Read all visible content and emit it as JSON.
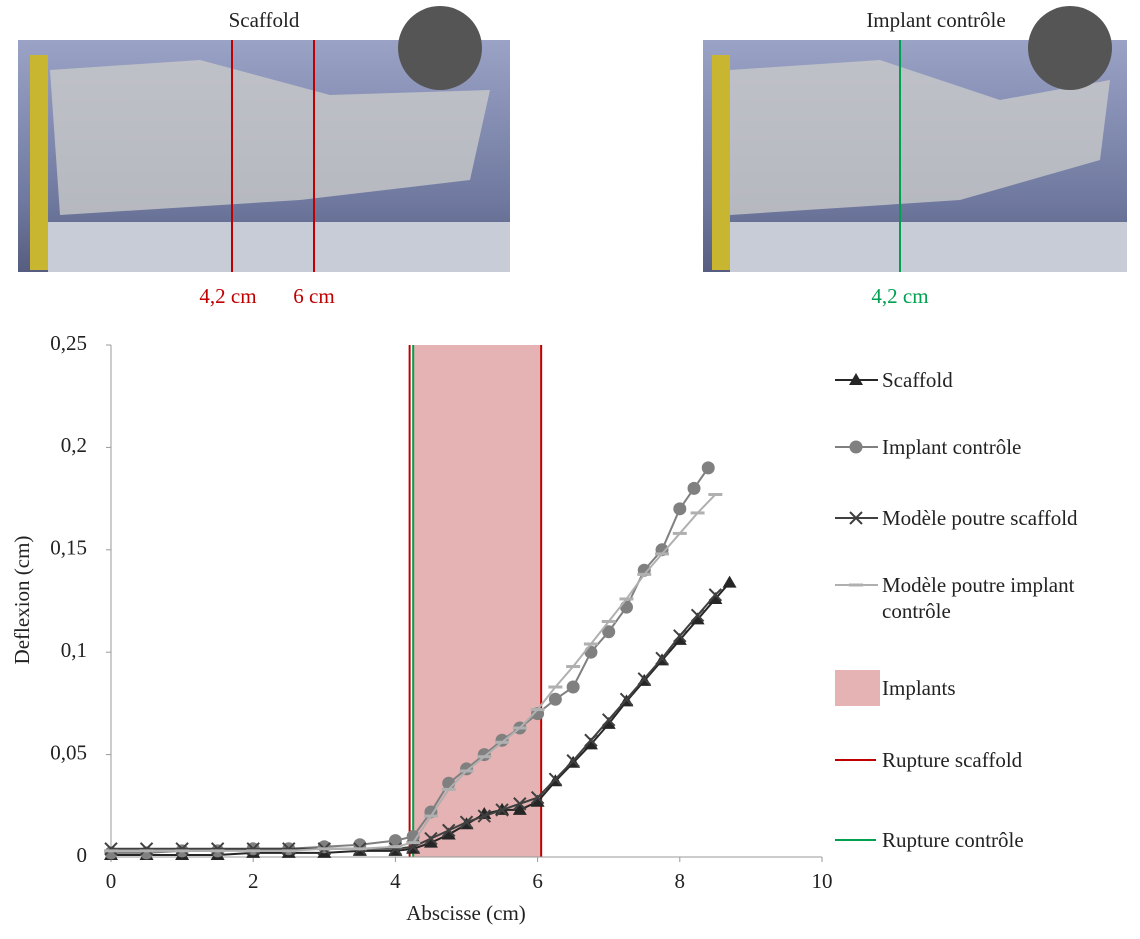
{
  "photos": [
    {
      "title": "Scaffold",
      "marks": [
        "4,2 cm",
        "6 cm"
      ]
    },
    {
      "title": "Implant contrôle",
      "marks": [
        "4,2 cm"
      ]
    }
  ],
  "chart_data": {
    "type": "line",
    "x_label": "Abscisse (cm)",
    "y_label": "Deflexion (cm)",
    "xlim": [
      0,
      10
    ],
    "xticks": [
      0,
      2,
      4,
      6,
      8,
      10
    ],
    "ylim": [
      0,
      0.25
    ],
    "yticks": [
      0,
      {
        "value": 0.05,
        "label": "0,05"
      },
      {
        "value": 0.1,
        "label": "0,1"
      },
      {
        "value": 0.15,
        "label": "0,15"
      },
      {
        "value": 0.2,
        "label": "0,2"
      },
      {
        "value": 0.25,
        "label": "0,25"
      }
    ],
    "legend": "right",
    "series": [
      {
        "name": "Scaffold",
        "color": "#262626",
        "marker": "triangle",
        "x": [
          0,
          0.5,
          1,
          1.5,
          2,
          2.5,
          3,
          3.5,
          4,
          4.25,
          4.5,
          4.75,
          5,
          5.25,
          5.5,
          5.75,
          6,
          6.25,
          6.5,
          6.75,
          7,
          7.25,
          7.5,
          7.75,
          8,
          8.25,
          8.5,
          8.7
        ],
        "values": [
          0.001,
          0.001,
          0.001,
          0.001,
          0.002,
          0.002,
          0.002,
          0.003,
          0.003,
          0.004,
          0.007,
          0.011,
          0.016,
          0.021,
          0.023,
          0.023,
          0.027,
          0.037,
          0.046,
          0.055,
          0.065,
          0.076,
          0.086,
          0.096,
          0.106,
          0.116,
          0.126,
          0.134
        ]
      },
      {
        "name": "Implant contrôle",
        "color": "#808080",
        "marker": "circle",
        "x": [
          0,
          0.5,
          1,
          1.5,
          2,
          2.5,
          3,
          3.5,
          4,
          4.25,
          4.5,
          4.75,
          5,
          5.25,
          5.5,
          5.75,
          6,
          6.25,
          6.5,
          6.75,
          7,
          7.25,
          7.5,
          7.75,
          8,
          8.2,
          8.4
        ],
        "values": [
          0.002,
          0.002,
          0.003,
          0.003,
          0.004,
          0.004,
          0.005,
          0.006,
          0.008,
          0.01,
          0.022,
          0.036,
          0.043,
          0.05,
          0.057,
          0.063,
          0.07,
          0.077,
          0.083,
          0.1,
          0.11,
          0.122,
          0.14,
          0.15,
          0.17,
          0.18,
          0.19
        ]
      },
      {
        "name": "Modèle poutre scaffold",
        "color": "#404040",
        "marker": "x",
        "x": [
          0,
          0.5,
          1,
          1.5,
          2,
          2.5,
          3,
          3.5,
          4,
          4.25,
          4.5,
          4.75,
          5,
          5.25,
          5.5,
          5.75,
          6,
          6.25,
          6.5,
          6.75,
          7,
          7.25,
          7.5,
          7.75,
          8,
          8.25,
          8.5
        ],
        "values": [
          0.004,
          0.004,
          0.004,
          0.004,
          0.004,
          0.004,
          0.004,
          0.004,
          0.004,
          0.005,
          0.009,
          0.013,
          0.017,
          0.02,
          0.023,
          0.026,
          0.029,
          0.038,
          0.047,
          0.057,
          0.067,
          0.077,
          0.087,
          0.097,
          0.108,
          0.118,
          0.128
        ]
      },
      {
        "name": "Modèle poutre implant contrôle",
        "color": "#b0b0b0",
        "marker": "dash",
        "x": [
          0,
          0.5,
          1,
          1.5,
          2,
          2.5,
          3,
          3.5,
          4,
          4.25,
          4.5,
          4.75,
          5,
          5.25,
          5.5,
          5.75,
          6,
          6.25,
          6.5,
          6.75,
          7,
          7.25,
          7.5,
          7.75,
          8,
          8.25,
          8.5
        ],
        "values": [
          0.003,
          0.003,
          0.003,
          0.003,
          0.003,
          0.003,
          0.004,
          0.004,
          0.005,
          0.007,
          0.02,
          0.033,
          0.042,
          0.049,
          0.056,
          0.063,
          0.072,
          0.083,
          0.093,
          0.104,
          0.115,
          0.126,
          0.138,
          0.148,
          0.158,
          0.168,
          0.177
        ]
      }
    ],
    "bands": [
      {
        "name": "Implants",
        "from": 4.25,
        "to": 6.05,
        "color": "#e5b3b3"
      }
    ],
    "vlines": [
      {
        "name": "Rupture scaffold",
        "x": [
          4.2,
          6.05
        ],
        "color": "#c00000"
      },
      {
        "name": "Rupture contrôle",
        "x": [
          4.25
        ],
        "color": "#00a050"
      }
    ]
  }
}
